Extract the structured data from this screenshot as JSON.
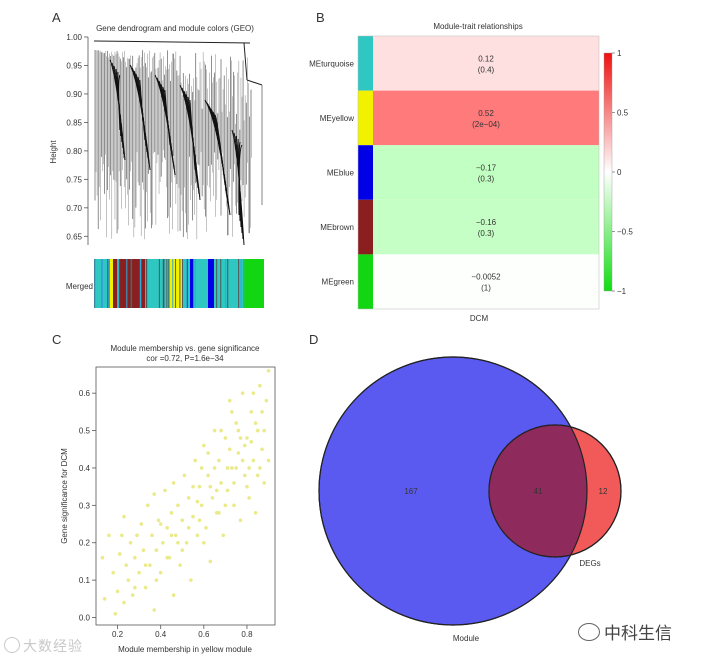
{
  "panels": {
    "a": {
      "letter": "A",
      "title": "Gene dendrogram and module colors (GEO)",
      "ylabel": "Height",
      "yticks": [
        "1.00",
        "0.95",
        "0.90",
        "0.85",
        "0.80",
        "0.75",
        "0.70",
        "0.65"
      ],
      "yvalues": [
        1.0,
        0.95,
        0.9,
        0.85,
        0.8,
        0.75,
        0.7,
        0.65
      ],
      "ylim": [
        0.64,
        1.0
      ],
      "row_label": "Merged",
      "color_bar": [
        "turquoise",
        "yellow",
        "brown",
        "turquoise",
        "yellow",
        "turquoise",
        "blue",
        "turquoise",
        "green"
      ]
    },
    "b": {
      "letter": "B",
      "title": "Module-trait relationships",
      "xlabel": "DCM",
      "rows": [
        {
          "name": "MEturquoise",
          "value": "0.12",
          "pvalue": "(0.4)",
          "corr": 0.12,
          "module_color": "#2ec7c2"
        },
        {
          "name": "MEyellow",
          "value": "0.52",
          "pvalue": "(2e−04)",
          "corr": 0.52,
          "module_color": "#f2f200"
        },
        {
          "name": "MEblue",
          "value": "−0.17",
          "pvalue": "(0.3)",
          "corr": -0.17,
          "module_color": "#0000e6"
        },
        {
          "name": "MEbrown",
          "value": "−0.16",
          "pvalue": "(0.3)",
          "corr": -0.16,
          "module_color": "#8b1f1f"
        },
        {
          "name": "MEgreen",
          "value": "−0.0052",
          "pvalue": "(1)",
          "corr": -0.0052,
          "module_color": "#12d612"
        }
      ],
      "legend_ticks": [
        "1",
        "0.5",
        "0",
        "−0.5",
        "−1"
      ],
      "legend_values": [
        1,
        0.5,
        0,
        -0.5,
        -1
      ]
    },
    "c": {
      "letter": "C",
      "title": "Module membership vs. gene significance",
      "subtitle": "cor =0.72, P=1.6e−34"
    },
    "d": {
      "letter": "D",
      "labels": {
        "left_only": "167",
        "overlap": "41",
        "right_only": "12",
        "left_set": "Module",
        "right_set": "DEGs"
      },
      "colors": {
        "left": "#5a5af0",
        "right": "#f25a5a",
        "overlap": "#8e2a5c"
      }
    }
  },
  "chart_data": [
    {
      "type": "scatter",
      "title": "Module membership vs. gene significance",
      "subtitle": "cor =0.72, P=1.6e−34",
      "xlabel": "Module membership in yellow module",
      "ylabel": "Gene significance for DCM",
      "xlim": [
        0.1,
        0.93
      ],
      "ylim": [
        -0.02,
        0.67
      ],
      "xticks": [
        0.2,
        0.4,
        0.6,
        0.8
      ],
      "xtick_labels": [
        "0.2",
        "0.4",
        "0.6",
        "0.8"
      ],
      "yticks": [
        0.0,
        0.1,
        0.2,
        0.3,
        0.4,
        0.5,
        0.6
      ],
      "ytick_labels": [
        "0.0",
        "0.1",
        "0.2",
        "0.3",
        "0.4",
        "0.5",
        "0.6"
      ],
      "point_color": "#eaea8a",
      "points": [
        [
          0.13,
          0.16
        ],
        [
          0.14,
          0.05
        ],
        [
          0.16,
          0.22
        ],
        [
          0.18,
          0.12
        ],
        [
          0.19,
          0.01
        ],
        [
          0.2,
          0.07
        ],
        [
          0.21,
          0.17
        ],
        [
          0.22,
          0.22
        ],
        [
          0.23,
          0.27
        ],
        [
          0.24,
          0.14
        ],
        [
          0.25,
          0.1
        ],
        [
          0.26,
          0.2
        ],
        [
          0.27,
          0.06
        ],
        [
          0.28,
          0.16
        ],
        [
          0.29,
          0.22
        ],
        [
          0.3,
          0.12
        ],
        [
          0.31,
          0.25
        ],
        [
          0.32,
          0.18
        ],
        [
          0.33,
          0.08
        ],
        [
          0.34,
          0.3
        ],
        [
          0.35,
          0.14
        ],
        [
          0.36,
          0.22
        ],
        [
          0.37,
          0.02
        ],
        [
          0.37,
          0.33
        ],
        [
          0.38,
          0.18
        ],
        [
          0.39,
          0.26
        ],
        [
          0.4,
          0.12
        ],
        [
          0.41,
          0.2
        ],
        [
          0.42,
          0.34
        ],
        [
          0.43,
          0.24
        ],
        [
          0.44,
          0.16
        ],
        [
          0.45,
          0.28
        ],
        [
          0.46,
          0.06
        ],
        [
          0.46,
          0.36
        ],
        [
          0.47,
          0.22
        ],
        [
          0.48,
          0.3
        ],
        [
          0.49,
          0.14
        ],
        [
          0.5,
          0.26
        ],
        [
          0.51,
          0.38
        ],
        [
          0.52,
          0.2
        ],
        [
          0.53,
          0.32
        ],
        [
          0.54,
          0.1
        ],
        [
          0.55,
          0.27
        ],
        [
          0.56,
          0.42
        ],
        [
          0.57,
          0.22
        ],
        [
          0.58,
          0.35
        ],
        [
          0.59,
          0.3
        ],
        [
          0.6,
          0.46
        ],
        [
          0.61,
          0.24
        ],
        [
          0.62,
          0.38
        ],
        [
          0.63,
          0.15
        ],
        [
          0.64,
          0.32
        ],
        [
          0.65,
          0.5
        ],
        [
          0.66,
          0.28
        ],
        [
          0.67,
          0.42
        ],
        [
          0.68,
          0.36
        ],
        [
          0.69,
          0.22
        ],
        [
          0.7,
          0.48
        ],
        [
          0.71,
          0.34
        ],
        [
          0.72,
          0.58
        ],
        [
          0.73,
          0.4
        ],
        [
          0.74,
          0.3
        ],
        [
          0.75,
          0.52
        ],
        [
          0.76,
          0.44
        ],
        [
          0.77,
          0.26
        ],
        [
          0.78,
          0.6
        ],
        [
          0.79,
          0.38
        ],
        [
          0.8,
          0.48
        ],
        [
          0.81,
          0.32
        ],
        [
          0.82,
          0.55
        ],
        [
          0.83,
          0.42
        ],
        [
          0.84,
          0.28
        ],
        [
          0.85,
          0.5
        ],
        [
          0.86,
          0.62
        ],
        [
          0.87,
          0.45
        ],
        [
          0.88,
          0.36
        ],
        [
          0.89,
          0.58
        ],
        [
          0.9,
          0.66
        ],
        [
          0.6,
          0.2
        ],
        [
          0.65,
          0.4
        ],
        [
          0.7,
          0.3
        ],
        [
          0.72,
          0.45
        ],
        [
          0.74,
          0.36
        ],
        [
          0.76,
          0.5
        ],
        [
          0.78,
          0.42
        ],
        [
          0.8,
          0.35
        ],
        [
          0.82,
          0.47
        ],
        [
          0.84,
          0.52
        ],
        [
          0.86,
          0.4
        ],
        [
          0.88,
          0.5
        ],
        [
          0.55,
          0.35
        ],
        [
          0.5,
          0.18
        ],
        [
          0.45,
          0.22
        ],
        [
          0.4,
          0.25
        ],
        [
          0.62,
          0.44
        ],
        [
          0.68,
          0.5
        ],
        [
          0.73,
          0.55
        ],
        [
          0.77,
          0.48
        ],
        [
          0.81,
          0.4
        ],
        [
          0.85,
          0.38
        ],
        [
          0.66,
          0.34
        ],
        [
          0.58,
          0.26
        ],
        [
          0.53,
          0.24
        ],
        [
          0.48,
          0.2
        ],
        [
          0.43,
          0.16
        ],
        [
          0.38,
          0.1
        ],
        [
          0.33,
          0.14
        ],
        [
          0.28,
          0.08
        ],
        [
          0.23,
          0.04
        ],
        [
          0.9,
          0.42
        ],
        [
          0.87,
          0.55
        ],
        [
          0.83,
          0.6
        ],
        [
          0.79,
          0.46
        ],
        [
          0.75,
          0.4
        ],
        [
          0.71,
          0.4
        ],
        [
          0.67,
          0.28
        ],
        [
          0.63,
          0.35
        ],
        [
          0.59,
          0.4
        ],
        [
          0.57,
          0.31
        ]
      ]
    },
    {
      "type": "heatmap",
      "title": "Module-trait relationships",
      "rows": [
        "MEturquoise",
        "MEyellow",
        "MEblue",
        "MEbrown",
        "MEgreen"
      ],
      "columns": [
        "DCM"
      ],
      "values": [
        0.12,
        0.52,
        -0.17,
        -0.16,
        -0.0052
      ],
      "pvalues": [
        "0.4",
        "2e−04",
        "0.3",
        "0.3",
        "1"
      ],
      "color_range": [
        -1,
        1
      ]
    }
  ],
  "watermarks": {
    "left": "大数经验",
    "right": "中科生信"
  }
}
